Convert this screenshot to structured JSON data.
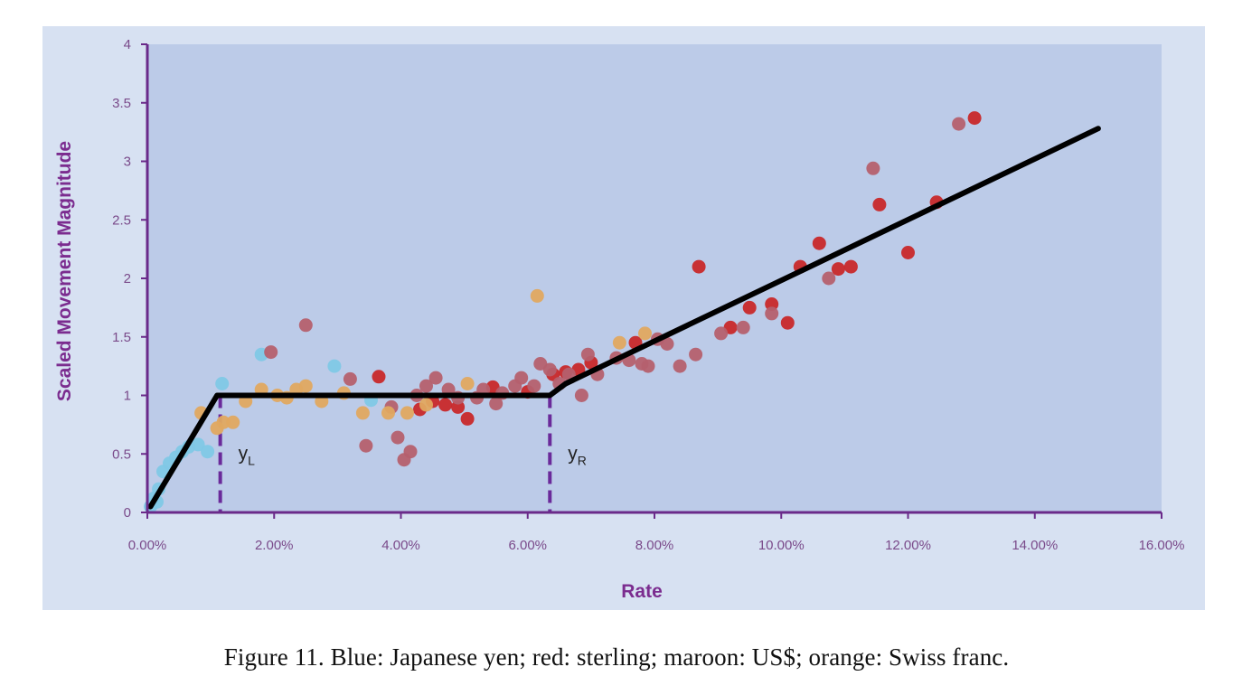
{
  "caption": "Figure 11.  Blue: Japanese yen; red: sterling; maroon: US$; orange: Swiss franc.",
  "chart_data": {
    "type": "scatter",
    "title": "",
    "xlabel": "Rate",
    "ylabel": "Scaled Movement Magnitude",
    "xlim": [
      0,
      0.16
    ],
    "ylim": [
      0,
      4
    ],
    "x_ticks": [
      0,
      0.02,
      0.04,
      0.06,
      0.08,
      0.1,
      0.12,
      0.14,
      0.16
    ],
    "x_tick_labels": [
      "0.00%",
      "2.00%",
      "4.00%",
      "6.00%",
      "8.00%",
      "10.00%",
      "12.00%",
      "14.00%",
      "16.00%"
    ],
    "y_ticks": [
      0,
      0.5,
      1,
      1.5,
      2,
      2.5,
      3,
      3.5,
      4
    ],
    "y_tick_labels": [
      "0",
      "0.5",
      "1",
      "1.5",
      "2",
      "2.5",
      "3",
      "3.5",
      "4"
    ],
    "grid": false,
    "legend": "none",
    "colors": {
      "plot_background": "#bccbe8",
      "outer_background": "#d7e1f2",
      "axis": "#6a2a8a",
      "fit_line": "#000000",
      "marker_line": "#6a2a9a"
    },
    "fit_line": {
      "x": [
        0.0005,
        0.011,
        0.0635,
        0.066,
        0.15
      ],
      "y": [
        0.05,
        1.0,
        1.0,
        1.1,
        3.28
      ]
    },
    "markers": [
      {
        "label": "yL",
        "main": "y",
        "sub": "L",
        "x": 0.0115
      },
      {
        "label": "yR",
        "main": "y",
        "sub": "R",
        "x": 0.0635
      }
    ],
    "series": [
      {
        "color_name": "blue",
        "color": "#7fc8e6",
        "points": [
          [
            0.0005,
            0.05
          ],
          [
            0.001,
            0.12
          ],
          [
            0.0015,
            0.09
          ],
          [
            0.0018,
            0.2
          ],
          [
            0.0025,
            0.35
          ],
          [
            0.0035,
            0.42
          ],
          [
            0.0045,
            0.47
          ],
          [
            0.0055,
            0.52
          ],
          [
            0.0065,
            0.56
          ],
          [
            0.008,
            0.58
          ],
          [
            0.0095,
            0.52
          ],
          [
            0.0118,
            1.1
          ],
          [
            0.018,
            1.35
          ],
          [
            0.0295,
            1.25
          ],
          [
            0.0353,
            0.96
          ]
        ]
      },
      {
        "color_name": "red",
        "color": "#c8282a",
        "points": [
          [
            0.0365,
            1.16
          ],
          [
            0.043,
            0.88
          ],
          [
            0.045,
            0.95
          ],
          [
            0.047,
            0.92
          ],
          [
            0.049,
            0.9
          ],
          [
            0.0505,
            0.8
          ],
          [
            0.0545,
            1.07
          ],
          [
            0.06,
            1.03
          ],
          [
            0.064,
            1.18
          ],
          [
            0.066,
            1.2
          ],
          [
            0.068,
            1.22
          ],
          [
            0.07,
            1.28
          ],
          [
            0.077,
            1.45
          ],
          [
            0.087,
            2.1
          ],
          [
            0.092,
            1.58
          ],
          [
            0.095,
            1.75
          ],
          [
            0.0985,
            1.78
          ],
          [
            0.101,
            1.62
          ],
          [
            0.103,
            2.1
          ],
          [
            0.106,
            2.3
          ],
          [
            0.109,
            2.08
          ],
          [
            0.111,
            2.1
          ],
          [
            0.1155,
            2.63
          ],
          [
            0.12,
            2.22
          ],
          [
            0.1245,
            2.65
          ],
          [
            0.1305,
            3.37
          ]
        ]
      },
      {
        "color_name": "maroon",
        "color": "#b5606e",
        "points": [
          [
            0.0195,
            1.37
          ],
          [
            0.025,
            1.6
          ],
          [
            0.032,
            1.14
          ],
          [
            0.0345,
            0.57
          ],
          [
            0.0385,
            0.9
          ],
          [
            0.0395,
            0.64
          ],
          [
            0.0405,
            0.45
          ],
          [
            0.0415,
            0.52
          ],
          [
            0.0425,
            1.0
          ],
          [
            0.044,
            1.08
          ],
          [
            0.0455,
            1.15
          ],
          [
            0.0475,
            1.05
          ],
          [
            0.049,
            0.98
          ],
          [
            0.052,
            0.98
          ],
          [
            0.053,
            1.05
          ],
          [
            0.055,
            0.93
          ],
          [
            0.056,
            1.02
          ],
          [
            0.058,
            1.08
          ],
          [
            0.059,
            1.15
          ],
          [
            0.061,
            1.08
          ],
          [
            0.062,
            1.27
          ],
          [
            0.0635,
            1.22
          ],
          [
            0.065,
            1.1
          ],
          [
            0.0665,
            1.18
          ],
          [
            0.0685,
            1.0
          ],
          [
            0.0695,
            1.35
          ],
          [
            0.071,
            1.18
          ],
          [
            0.074,
            1.32
          ],
          [
            0.076,
            1.3
          ],
          [
            0.078,
            1.27
          ],
          [
            0.079,
            1.25
          ],
          [
            0.0805,
            1.48
          ],
          [
            0.082,
            1.44
          ],
          [
            0.084,
            1.25
          ],
          [
            0.0865,
            1.35
          ],
          [
            0.0905,
            1.53
          ],
          [
            0.094,
            1.58
          ],
          [
            0.0985,
            1.7
          ],
          [
            0.1075,
            2.0
          ],
          [
            0.1145,
            2.94
          ],
          [
            0.128,
            3.32
          ]
        ]
      },
      {
        "color_name": "orange",
        "color": "#e0a860",
        "points": [
          [
            0.0085,
            0.85
          ],
          [
            0.011,
            0.72
          ],
          [
            0.012,
            0.77
          ],
          [
            0.0135,
            0.77
          ],
          [
            0.0155,
            0.95
          ],
          [
            0.018,
            1.05
          ],
          [
            0.0205,
            1.0
          ],
          [
            0.022,
            0.98
          ],
          [
            0.0235,
            1.05
          ],
          [
            0.025,
            1.08
          ],
          [
            0.0275,
            0.95
          ],
          [
            0.031,
            1.02
          ],
          [
            0.034,
            0.85
          ],
          [
            0.038,
            0.85
          ],
          [
            0.041,
            0.85
          ],
          [
            0.044,
            0.92
          ],
          [
            0.0505,
            1.1
          ],
          [
            0.0615,
            1.85
          ],
          [
            0.0745,
            1.45
          ],
          [
            0.0785,
            1.53
          ]
        ]
      }
    ]
  }
}
